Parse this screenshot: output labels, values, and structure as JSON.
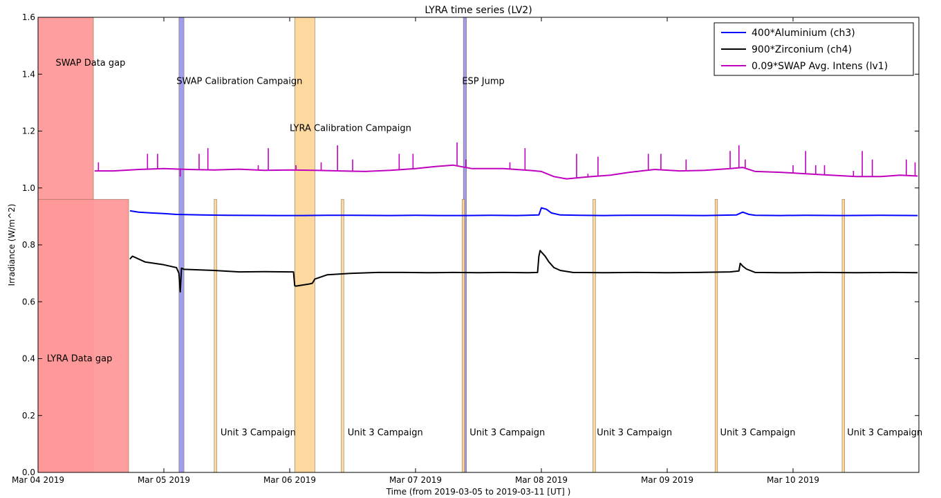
{
  "chart_data": {
    "type": "line",
    "title": "LYRA time series (LV2)",
    "xlabel": "Time (from 2019-03-05 to 2019-03-11 [UT] )",
    "ylabel": "Irradiance (W/m^2)",
    "ylim": [
      0.0,
      1.6
    ],
    "xlim_days": [
      0,
      7.0
    ],
    "x_ticks": [
      {
        "day": 0,
        "label": "Mar 04 2019"
      },
      {
        "day": 1,
        "label": "Mar 05 2019"
      },
      {
        "day": 2,
        "label": "Mar 06 2019"
      },
      {
        "day": 3,
        "label": "Mar 07 2019"
      },
      {
        "day": 4,
        "label": "Mar 08 2019"
      },
      {
        "day": 5,
        "label": "Mar 09 2019"
      },
      {
        "day": 6,
        "label": "Mar 10 2019"
      }
    ],
    "y_ticks": [
      "0.0",
      "0.2",
      "0.4",
      "0.6",
      "0.8",
      "1.0",
      "1.2",
      "1.4",
      "1.6"
    ],
    "legend_position": "top-right",
    "series": [
      {
        "name": "400*Aluminium (ch3)",
        "color": "#0000ff",
        "x": [
          0.73,
          0.8,
          0.9,
          1.0,
          1.1,
          1.2,
          1.3,
          1.5,
          1.9,
          2.1,
          2.3,
          2.5,
          2.8,
          3.0,
          3.2,
          3.4,
          3.6,
          3.8,
          3.98,
          4.0,
          4.04,
          4.08,
          4.15,
          4.3,
          4.5,
          4.7,
          5.0,
          5.3,
          5.55,
          5.6,
          5.65,
          5.7,
          5.9,
          6.1,
          6.4,
          6.7,
          6.99
        ],
        "y": [
          0.92,
          0.915,
          0.912,
          0.91,
          0.907,
          0.906,
          0.905,
          0.904,
          0.903,
          0.903,
          0.904,
          0.904,
          0.903,
          0.904,
          0.903,
          0.903,
          0.904,
          0.903,
          0.905,
          0.93,
          0.925,
          0.912,
          0.905,
          0.904,
          0.903,
          0.904,
          0.904,
          0.903,
          0.905,
          0.915,
          0.907,
          0.904,
          0.903,
          0.904,
          0.903,
          0.904,
          0.903
        ]
      },
      {
        "name": "900*Zirconium (ch4)",
        "color": "#000000",
        "x": [
          0.73,
          0.75,
          0.85,
          1.0,
          1.1,
          1.12,
          1.13,
          1.14,
          1.16,
          1.4,
          1.6,
          1.8,
          2.0,
          2.03,
          2.04,
          2.05,
          2.15,
          2.18,
          2.2,
          2.3,
          2.5,
          2.7,
          2.9,
          3.1,
          3.3,
          3.5,
          3.7,
          3.9,
          3.97,
          3.98,
          3.99,
          4.0,
          4.03,
          4.06,
          4.1,
          4.15,
          4.25,
          4.5,
          4.75,
          5.0,
          5.25,
          5.5,
          5.57,
          5.58,
          5.6,
          5.63,
          5.7,
          5.9,
          6.2,
          6.5,
          6.8,
          6.99
        ],
        "y": [
          0.75,
          0.76,
          0.74,
          0.73,
          0.72,
          0.7,
          0.635,
          0.718,
          0.714,
          0.71,
          0.705,
          0.706,
          0.705,
          0.705,
          0.656,
          0.655,
          0.662,
          0.665,
          0.68,
          0.695,
          0.7,
          0.703,
          0.703,
          0.702,
          0.703,
          0.702,
          0.703,
          0.702,
          0.703,
          0.76,
          0.78,
          0.775,
          0.76,
          0.74,
          0.72,
          0.71,
          0.703,
          0.702,
          0.703,
          0.702,
          0.703,
          0.705,
          0.708,
          0.735,
          0.725,
          0.715,
          0.703,
          0.702,
          0.703,
          0.702,
          0.703,
          0.702
        ]
      },
      {
        "name": "0.09*SWAP Avg. Intens (lv1)",
        "color": "#bf00bf",
        "x": [
          0.45,
          0.6,
          0.8,
          1.0,
          1.2,
          1.4,
          1.6,
          1.8,
          2.0,
          2.2,
          2.4,
          2.6,
          2.8,
          3.0,
          3.15,
          3.3,
          3.45,
          3.7,
          3.9,
          4.0,
          4.1,
          4.2,
          4.3,
          4.4,
          4.55,
          4.7,
          4.9,
          5.1,
          5.3,
          5.5,
          5.6,
          5.7,
          5.9,
          6.1,
          6.3,
          6.5,
          6.7,
          6.85,
          6.99
        ],
        "y": [
          1.06,
          1.06,
          1.065,
          1.068,
          1.065,
          1.063,
          1.066,
          1.062,
          1.063,
          1.062,
          1.06,
          1.058,
          1.062,
          1.068,
          1.075,
          1.08,
          1.068,
          1.068,
          1.062,
          1.058,
          1.04,
          1.032,
          1.036,
          1.04,
          1.045,
          1.055,
          1.065,
          1.06,
          1.062,
          1.068,
          1.072,
          1.058,
          1.055,
          1.05,
          1.045,
          1.04,
          1.04,
          1.045,
          1.042
        ]
      }
    ],
    "spikes": {
      "series": "0.09*SWAP Avg. Intens (lv1)",
      "x": [
        0.48,
        0.87,
        0.95,
        1.13,
        1.28,
        1.35,
        1.75,
        1.83,
        2.05,
        2.25,
        2.38,
        2.5,
        2.87,
        2.98,
        3.33,
        3.4,
        3.75,
        3.87,
        4.28,
        4.37,
        4.45,
        4.85,
        4.95,
        5.15,
        5.5,
        5.57,
        5.62,
        6.0,
        6.1,
        6.18,
        6.25,
        6.48,
        6.55,
        6.63,
        6.9,
        6.97
      ],
      "y": [
        1.09,
        1.12,
        1.12,
        1.04,
        1.12,
        1.14,
        1.08,
        1.14,
        1.08,
        1.09,
        1.15,
        1.1,
        1.12,
        1.12,
        1.16,
        1.1,
        1.09,
        1.14,
        1.12,
        1.05,
        1.11,
        1.12,
        1.12,
        1.1,
        1.13,
        1.15,
        1.1,
        1.08,
        1.13,
        1.08,
        1.08,
        1.06,
        1.13,
        1.1,
        1.1,
        1.09
      ]
    },
    "regions": [
      {
        "label": "SWAP Data gap",
        "x0": 0.0,
        "x1": 0.44,
        "y0": 0.0,
        "y1": 1.6,
        "color": "#ff9999"
      },
      {
        "label": "LYRA Data gap",
        "x0": 0.0,
        "x1": 0.72,
        "y0": 0.0,
        "y1": 0.96,
        "color": "#ff9999"
      },
      {
        "label": "SWAP Calibration Campaign",
        "x0": 1.12,
        "x1": 1.16,
        "y0": 0.0,
        "y1": 1.6,
        "color": "#9999ee"
      },
      {
        "label": "LYRA Calibration Campaign",
        "x0": 2.04,
        "x1": 2.2,
        "y0": 0.0,
        "y1": 1.6,
        "color": "#fdd89b"
      },
      {
        "label": "ESP Jump",
        "x0": 3.38,
        "x1": 3.405,
        "y0": 0.0,
        "y1": 1.6,
        "color": "#9999ee"
      },
      {
        "label": "Unit 3 Campaign",
        "x0": 1.4,
        "x1": 1.42,
        "y0": 0.0,
        "y1": 0.96,
        "color": "#fdd89b"
      },
      {
        "label": "Unit 3 Campaign",
        "x0": 2.41,
        "x1": 2.43,
        "y0": 0.0,
        "y1": 0.96,
        "color": "#fdd89b"
      },
      {
        "label": "Unit 3 Campaign",
        "x0": 3.37,
        "x1": 3.39,
        "y0": 0.0,
        "y1": 0.96,
        "color": "#fdd89b"
      },
      {
        "label": "Unit 3 Campaign",
        "x0": 4.41,
        "x1": 4.43,
        "y0": 0.0,
        "y1": 0.96,
        "color": "#fdd89b"
      },
      {
        "label": "Unit 3 Campaign",
        "x0": 5.38,
        "x1": 5.4,
        "y0": 0.0,
        "y1": 0.96,
        "color": "#fdd89b"
      },
      {
        "label": "Unit 3 Campaign",
        "x0": 6.39,
        "x1": 6.41,
        "y0": 0.0,
        "y1": 0.96,
        "color": "#fdd89b"
      }
    ],
    "annotations": [
      {
        "text": "SWAP Data gap",
        "x": 0.14,
        "y": 1.43
      },
      {
        "text": "LYRA Data gap",
        "x": 0.07,
        "y": 0.39
      },
      {
        "text": "SWAP Calibration Campaign",
        "x": 1.1,
        "y": 1.365
      },
      {
        "text": "LYRA Calibration Campaign",
        "x": 2.0,
        "y": 1.2
      },
      {
        "text": "ESP Jump",
        "x": 3.37,
        "y": 1.365
      },
      {
        "text": "Unit 3 Campaign",
        "x": 1.45,
        "y": 0.13
      },
      {
        "text": "Unit 3 Campaign",
        "x": 2.46,
        "y": 0.13
      },
      {
        "text": "Unit 3 Campaign",
        "x": 3.43,
        "y": 0.13
      },
      {
        "text": "Unit 3 Campaign",
        "x": 4.44,
        "y": 0.13
      },
      {
        "text": "Unit 3 Campaign",
        "x": 5.42,
        "y": 0.13
      },
      {
        "text": "Unit 3 Campaign",
        "x": 6.43,
        "y": 0.13
      }
    ]
  }
}
